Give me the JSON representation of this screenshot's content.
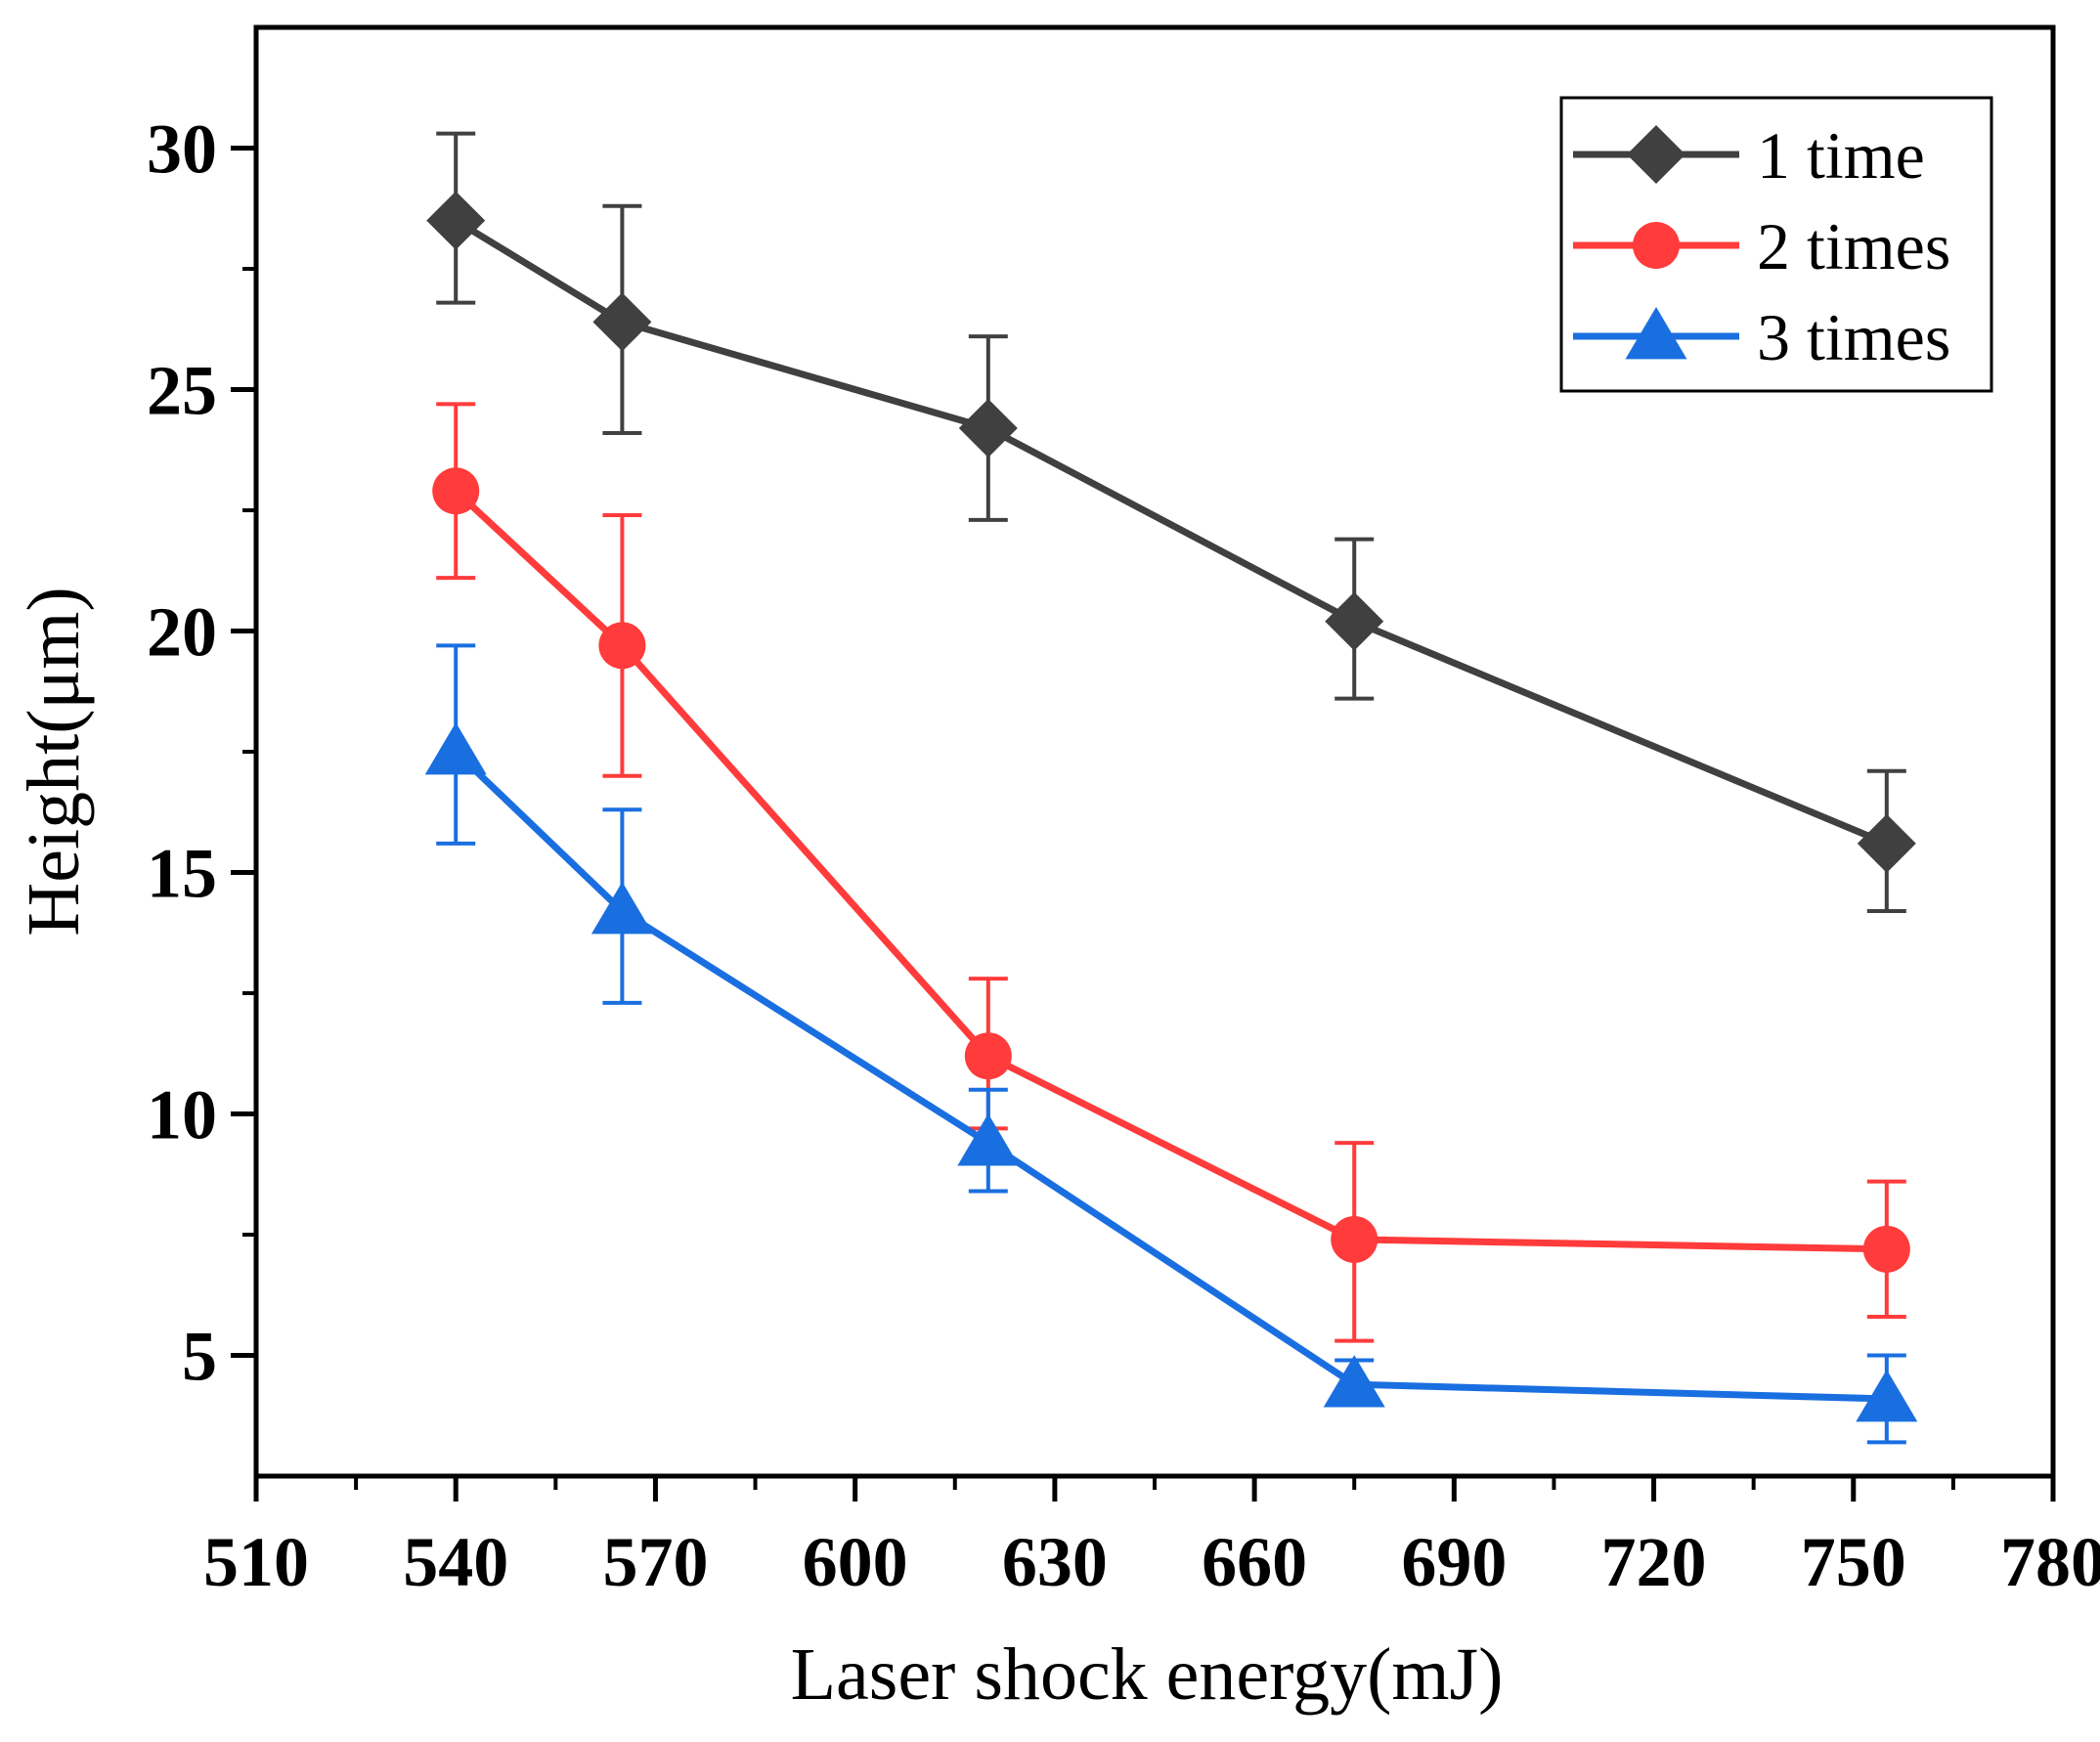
{
  "chart_data": {
    "type": "line",
    "title": "",
    "xlabel": "Laser shock energy(mJ)",
    "ylabel": "Height(μm)",
    "xlim": [
      510,
      780
    ],
    "ylim": [
      2.5,
      32.5
    ],
    "xticks": [
      510,
      540,
      570,
      600,
      630,
      660,
      690,
      720,
      750,
      780
    ],
    "yticks": [
      5,
      10,
      15,
      20,
      25,
      30
    ],
    "grid": false,
    "legend_position": "top-right",
    "x": [
      540,
      565,
      620,
      675,
      755
    ],
    "series": [
      {
        "name": "1 time",
        "color": "#404040",
        "marker": "diamond",
        "values": [
          28.5,
          26.4,
          24.2,
          20.2,
          15.6
        ],
        "error_upper": [
          30.3,
          28.8,
          26.1,
          21.9,
          17.1
        ],
        "error_lower": [
          26.8,
          24.1,
          22.3,
          18.6,
          14.2
        ]
      },
      {
        "name": "2 times",
        "color": "#ff3b3b",
        "marker": "circle",
        "values": [
          22.9,
          19.7,
          11.2,
          7.4,
          7.2
        ],
        "error_upper": [
          24.7,
          22.4,
          12.8,
          9.4,
          8.6
        ],
        "error_lower": [
          21.1,
          17.0,
          9.7,
          5.3,
          5.8
        ]
      },
      {
        "name": "3 times",
        "color": "#1a6fe0",
        "marker": "triangle",
        "values": [
          17.5,
          14.2,
          9.4,
          4.4,
          4.1
        ],
        "error_upper": [
          19.7,
          16.3,
          10.5,
          4.9,
          5.0
        ],
        "error_lower": [
          15.6,
          12.3,
          8.4,
          4.0,
          3.2
        ]
      }
    ]
  }
}
